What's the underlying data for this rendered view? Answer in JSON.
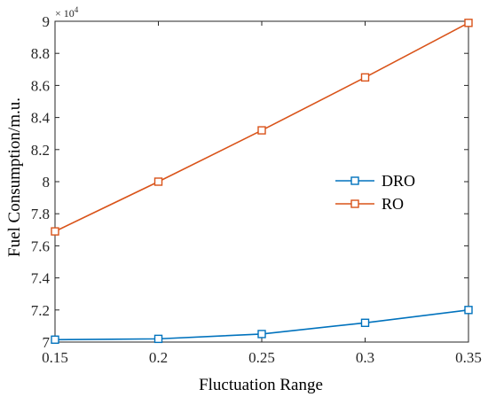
{
  "chart_data": {
    "type": "line",
    "xlabel": "Fluctuation Range",
    "ylabel": "Fuel Consumption/m.u.",
    "y_exponent": "× 10",
    "y_exponent_power": "4",
    "x": [
      0.15,
      0.2,
      0.25,
      0.3,
      0.35
    ],
    "xlim": [
      0.15,
      0.35
    ],
    "ylim": [
      70000,
      90000
    ],
    "x_ticks": [
      0.15,
      0.2,
      0.25,
      0.3,
      0.35
    ],
    "x_tick_labels": [
      "0.15",
      "0.2",
      "0.25",
      "0.3",
      "0.35"
    ],
    "y_ticks": [
      70000,
      72000,
      74000,
      76000,
      78000,
      80000,
      82000,
      84000,
      86000,
      88000,
      90000
    ],
    "y_tick_labels": [
      "7",
      "7.2",
      "7.4",
      "7.6",
      "7.8",
      "8",
      "8.2",
      "8.4",
      "8.6",
      "8.8",
      "9"
    ],
    "grid": false,
    "legend_position": "center-right",
    "marker": "square",
    "series": [
      {
        "name": "DRO",
        "color": "#0072BD",
        "values": [
          70150,
          70200,
          70500,
          71200,
          72000
        ]
      },
      {
        "name": "RO",
        "color": "#D95319",
        "values": [
          76900,
          80000,
          83200,
          86500,
          89900
        ]
      }
    ]
  }
}
